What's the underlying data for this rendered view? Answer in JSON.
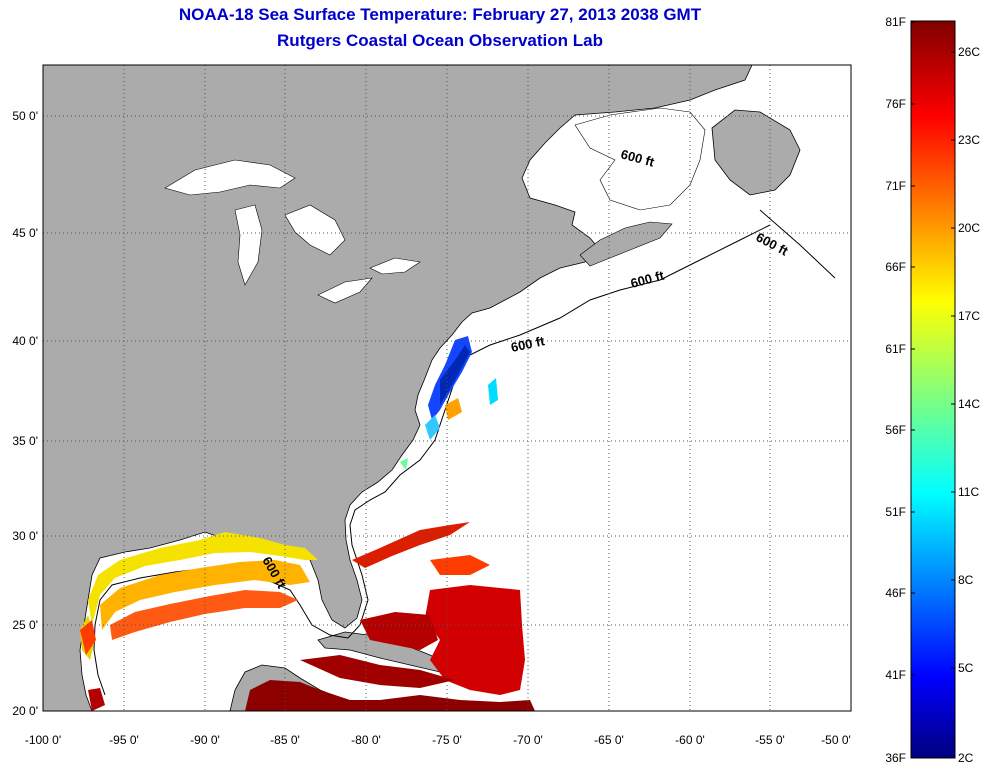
{
  "header": {
    "title": "NOAA-18 Sea Surface Temperature:  February 27, 2013 2038 GMT",
    "subtitle": "Rutgers Coastal Ocean Observation Lab"
  },
  "map": {
    "lon_ticks": [
      "-100 0'",
      "-95 0'",
      "-90 0'",
      "-85 0'",
      "-80 0'",
      "-75 0'",
      "-70 0'",
      "-65 0'",
      "-60 0'",
      "-55 0'",
      "-50 0'"
    ],
    "lat_ticks": [
      "20 0'",
      "25 0'",
      "30 0'",
      "35 0'",
      "40 0'",
      "45 0'",
      "50 0'"
    ],
    "depth_label": "600 ft",
    "colors": {
      "land": "#ababab",
      "ocean": "#ffffff",
      "grid": "#555555"
    }
  },
  "colorbar": {
    "fahrenheit_labels": [
      "81F",
      "76F",
      "71F",
      "66F",
      "61F",
      "56F",
      "51F",
      "46F",
      "41F",
      "36F"
    ],
    "celsius_labels": [
      "26C",
      "23C",
      "20C",
      "17C",
      "14C",
      "11C",
      "8C",
      "5C",
      "2C"
    ],
    "range_f": [
      36,
      81
    ],
    "range_c": [
      2,
      27
    ]
  }
}
